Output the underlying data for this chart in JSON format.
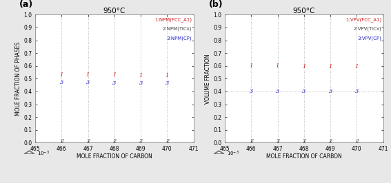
{
  "title": "950°C",
  "x_values": [
    466,
    467,
    468,
    469,
    470
  ],
  "x_lim": [
    465,
    471
  ],
  "x_ticks": [
    465,
    466,
    467,
    468,
    469,
    470,
    471
  ],
  "x_label": "MOLE FRACTION OF CARBON",
  "subplot_a": {
    "label": "(a)",
    "y_label": "MOLE FRACTION OF PHASES",
    "y_lim": [
      0,
      1.0
    ],
    "y_ticks": [
      0,
      0.1,
      0.2,
      0.3,
      0.4,
      0.5,
      0.6,
      0.7,
      0.8,
      0.9,
      1.0
    ],
    "hline": null,
    "series": [
      {
        "label": "1",
        "name": "1:NPM(FCC_A1)",
        "color": "#cc2222",
        "values": [
          0.53,
          0.528,
          0.527,
          0.525,
          0.524
        ]
      },
      {
        "label": "2",
        "name": "2:NPM(TiCx)",
        "color": "#444444",
        "values": [
          0.012,
          0.012,
          0.012,
          0.012,
          0.012
        ]
      },
      {
        "label": "3",
        "name": "3:NPM(CP)",
        "color": "#2222cc",
        "values": [
          0.468,
          0.468,
          0.467,
          0.467,
          0.466
        ]
      }
    ],
    "legend": [
      {
        "text": "1:NPM(FCC_A1)",
        "color": "#cc2222"
      },
      {
        "text": "2:NPM(TiCx)",
        "color": "#444444"
      },
      {
        "text": "3:NPM(CP)",
        "color": "#2222cc"
      }
    ]
  },
  "subplot_b": {
    "label": "(b)",
    "y_label": "VOLUME FRACTION",
    "y_lim": [
      0,
      1.0
    ],
    "y_ticks": [
      0,
      0.1,
      0.2,
      0.3,
      0.4,
      0.5,
      0.6,
      0.7,
      0.8,
      0.9,
      1.0
    ],
    "hline": 0.4,
    "series": [
      {
        "label": "1",
        "name": "1:VPV(FCC_A1)",
        "color": "#cc2222",
        "values": [
          0.6,
          0.598,
          0.596,
          0.594,
          0.592
        ]
      },
      {
        "label": "2",
        "name": "2:VPV(TiCx)",
        "color": "#444444",
        "values": [
          0.012,
          0.012,
          0.012,
          0.012,
          0.012
        ]
      },
      {
        "label": "3",
        "name": "3:VPV(CP)",
        "color": "#2222cc",
        "values": [
          0.4,
          0.4,
          0.4,
          0.4,
          0.4
        ]
      }
    ],
    "legend": [
      {
        "text": "1:VPV(FCC_A1)",
        "color": "#cc2222"
      },
      {
        "text": "2:VPV(TiCx)",
        "color": "#444444"
      },
      {
        "text": "3:VPV(CP)",
        "color": "#2222cc"
      }
    ]
  },
  "bg_color": "#e8e8e8",
  "plot_bg": "#ffffff",
  "dashed_color": "#aaaaaa",
  "fontsize_label": 5.5,
  "fontsize_tick": 5.5,
  "fontsize_title": 7.5,
  "fontsize_legend": 5.0,
  "fontsize_marker": 6.0,
  "fontsize_sublabel": 9
}
